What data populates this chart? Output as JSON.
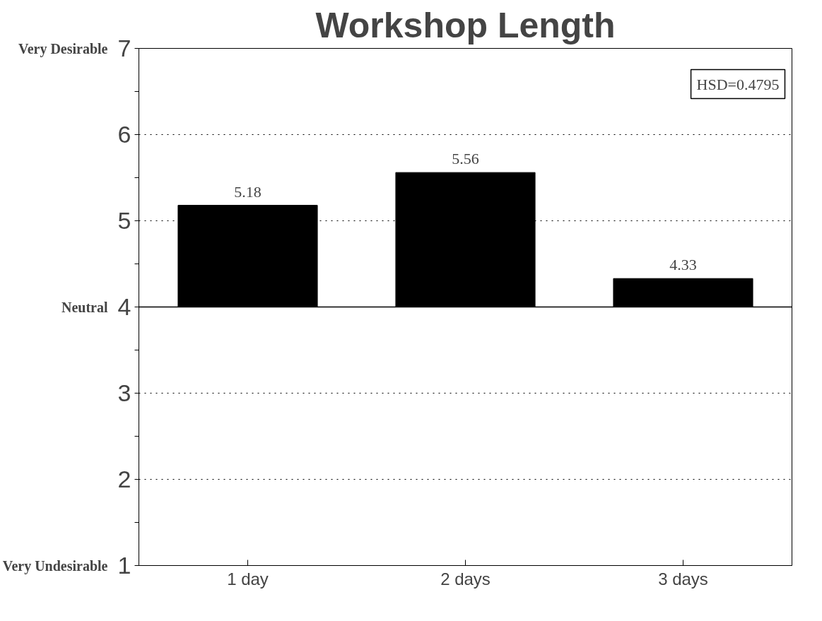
{
  "chart_data": {
    "type": "bar",
    "title": "Workshop Length",
    "categories": [
      "1 day",
      "2 days",
      "3 days"
    ],
    "base": [
      4,
      4,
      4
    ],
    "values": [
      1.18,
      1.56,
      0.33
    ],
    "value_labels": [
      "5.18",
      "5.56",
      "4.33"
    ],
    "color": "#000000",
    "ylim": [
      1,
      7
    ],
    "yticks": [
      1,
      {
        "value": 1.5,
        "label": null
      },
      2,
      {
        "value": 2.5,
        "label": null
      },
      3,
      {
        "value": 3.5,
        "label": null
      },
      4,
      {
        "value": 4.5,
        "label": null
      },
      5,
      {
        "value": 5.5,
        "label": null
      },
      6,
      {
        "value": 6.5,
        "label": null
      },
      7
    ],
    "grid": "y",
    "line_style": "dotted",
    "ref_lines": [
      {
        "axis": "y",
        "value": 4,
        "label": "Neutral",
        "color": "#000000",
        "line_style": "solid"
      }
    ],
    "annotations": [
      "Very Desirable",
      "Very Undesirable",
      "HSD=0.4795"
    ]
  }
}
